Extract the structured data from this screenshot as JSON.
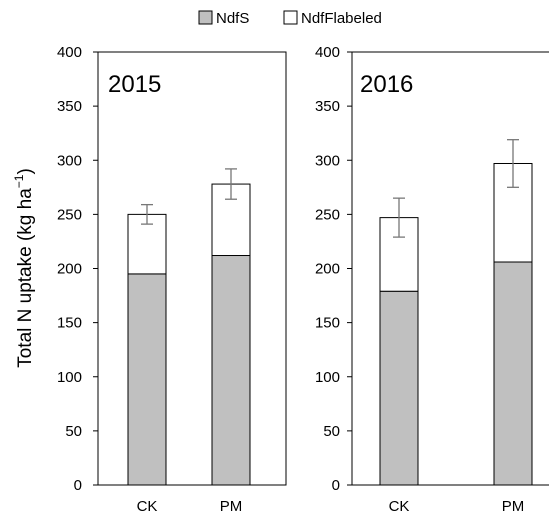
{
  "chart_data": {
    "type": "bar",
    "stacked": true,
    "legend": {
      "position": "top-center",
      "entries": [
        {
          "name": "NdfS",
          "color": "#c0c0c0"
        },
        {
          "name": "NdfFlabeled",
          "color": "#ffffff"
        }
      ]
    },
    "ylabel_main": "Total N uptake (kg ha",
    "ylabel_sup": "−1",
    "ylabel_tail": ")",
    "ylim": [
      0,
      400
    ],
    "yticks": [
      0,
      50,
      100,
      150,
      200,
      250,
      300,
      350,
      400
    ],
    "grid": false,
    "panels": [
      {
        "title": "2015",
        "categories": [
          "CK",
          "PM"
        ],
        "series": [
          {
            "name": "NdfS",
            "values": [
              195,
              212
            ]
          },
          {
            "name": "NdfFlabeled",
            "values": [
              55,
              66
            ]
          }
        ],
        "error": [
          9,
          14
        ]
      },
      {
        "title": "2016",
        "categories": [
          "CK",
          "PM"
        ],
        "series": [
          {
            "name": "NdfS",
            "values": [
              179,
              206
            ]
          },
          {
            "name": "NdfFlabeled",
            "values": [
              68,
              91
            ]
          }
        ],
        "error": [
          18,
          22
        ]
      }
    ]
  },
  "colors": {
    "ndfs_fill": "#c0c0c0",
    "labeled_fill": "#ffffff",
    "stroke": "#000000",
    "axis": "#000000",
    "error": "#777777",
    "frame": "#000000"
  }
}
